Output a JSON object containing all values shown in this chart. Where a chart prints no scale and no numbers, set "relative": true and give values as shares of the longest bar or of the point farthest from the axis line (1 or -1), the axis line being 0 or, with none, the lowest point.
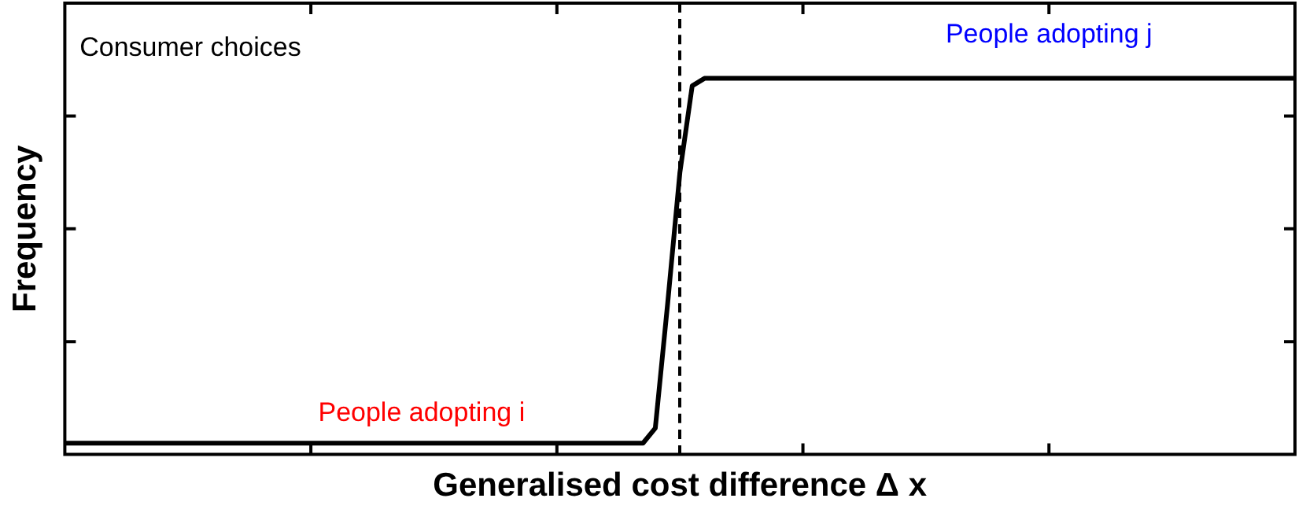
{
  "chart_data": {
    "type": "line",
    "relative": true,
    "xlabel": "Generalised cost difference Δ x",
    "ylabel": "Frequency",
    "categories": [
      null,
      null,
      null,
      null,
      null,
      null,
      null,
      null,
      null,
      null,
      null,
      null,
      null,
      null,
      null,
      null,
      null,
      null,
      null,
      null,
      null,
      null,
      null,
      null,
      null,
      null,
      null,
      null,
      null,
      null,
      null,
      null,
      null,
      null,
      null,
      null,
      null,
      null,
      null,
      null,
      null,
      null,
      null,
      null,
      null,
      null,
      null,
      null,
      null,
      null,
      null,
      null,
      null,
      null,
      null,
      null,
      null,
      null,
      null,
      null,
      null,
      null,
      null,
      null,
      null,
      null,
      null,
      null,
      null,
      null,
      null,
      null,
      null,
      null,
      null,
      null,
      null,
      null,
      null,
      null,
      null,
      null,
      null,
      null,
      null,
      null,
      null,
      null,
      null,
      null,
      null,
      null,
      null,
      null,
      null,
      null,
      null,
      null,
      null,
      null,
      null
    ],
    "grid": false,
    "legend": false,
    "marker": "none",
    "line_style": "solid",
    "series": [
      {
        "color": "#000000",
        "values": [
          0.03,
          0.03,
          0.03,
          0.03,
          0.03,
          0.03,
          0.03,
          0.03,
          0.03,
          0.03,
          0.03,
          0.03,
          0.03,
          0.03,
          0.03,
          0.03,
          0.03,
          0.03,
          0.03,
          0.03,
          0.03,
          0.03,
          0.03,
          0.03,
          0.03,
          0.03,
          0.03,
          0.03,
          0.03,
          0.03,
          0.03,
          0.03,
          0.03,
          0.03,
          0.03,
          0.03,
          0.03,
          0.03,
          0.03,
          0.03,
          0.03,
          0.03,
          0.03,
          0.03,
          0.03,
          0.03,
          0.03,
          0.03,
          0.07,
          0.4,
          0.75,
          0.98,
          1,
          1,
          1,
          1,
          1,
          1,
          1,
          1,
          1,
          1,
          1,
          1,
          1,
          1,
          1,
          1,
          1,
          1,
          1,
          1,
          1,
          1,
          1,
          1,
          1,
          1,
          1,
          1,
          1,
          1,
          1,
          1,
          1,
          1,
          1,
          1,
          1,
          1,
          1,
          1,
          1,
          1,
          1,
          1,
          1,
          1,
          1,
          1,
          1
        ]
      }
    ],
    "annotations": [
      "Consumer choices",
      "People adopting i",
      "People adopting j"
    ]
  }
}
